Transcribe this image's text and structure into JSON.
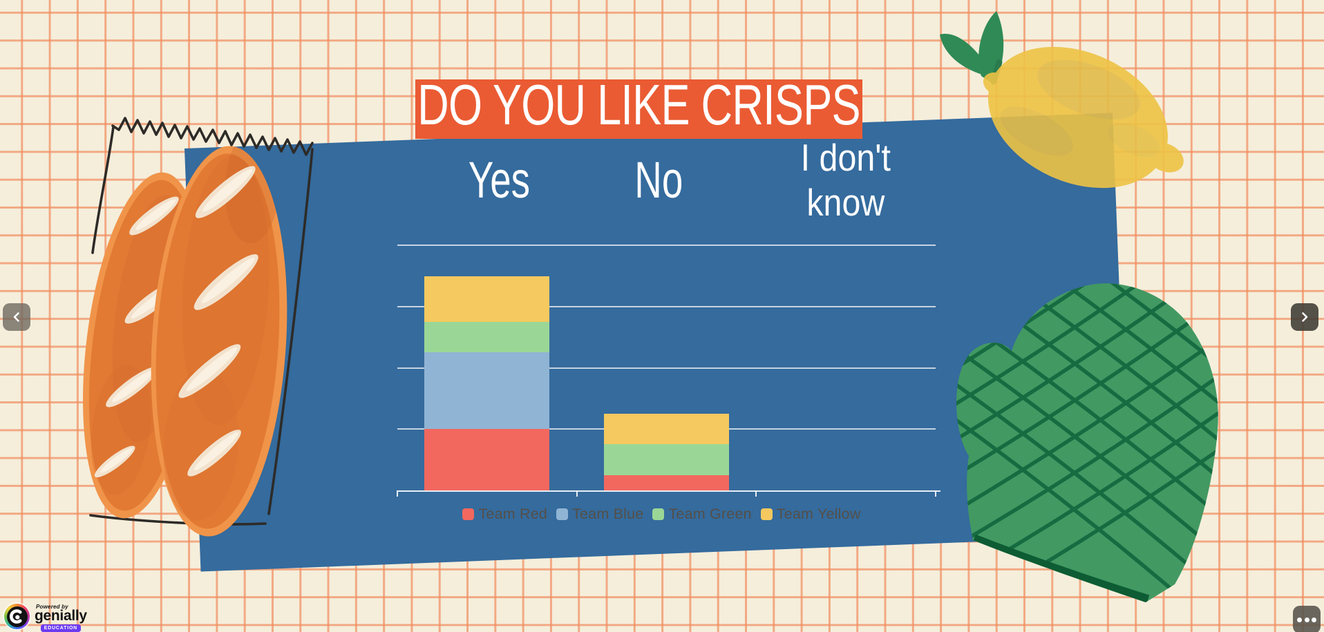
{
  "title": {
    "text": "DO YOU LIKE CRISPS"
  },
  "chart_data": {
    "type": "bar",
    "stacked": true,
    "title": "DO YOU LIKE CRISPS",
    "categories": [
      "Yes",
      "No",
      "I don't know"
    ],
    "series": [
      {
        "name": "Team Red",
        "color": "#f2685f",
        "values": [
          4,
          1,
          0
        ]
      },
      {
        "name": "Team Blue",
        "color": "#90b4d4",
        "values": [
          5,
          0,
          0
        ]
      },
      {
        "name": "Team Green",
        "color": "#9ad796",
        "values": [
          2,
          2,
          0
        ]
      },
      {
        "name": "Team Yellow",
        "color": "#f5c95f",
        "values": [
          3,
          2,
          0
        ]
      }
    ],
    "ylim": [
      0,
      16
    ],
    "gridline_values": [
      4,
      8,
      12,
      16
    ],
    "grid": true,
    "legend_position": "bottom"
  },
  "colors": {
    "panel": "#356b9d",
    "title_band": "#ea5b33",
    "background": "#f5eedb",
    "grid_line": "#f0885a",
    "sketch": "#2d2b28",
    "bread_body": "#e8823c",
    "lemon_body": "#eec345",
    "leaf": "#2f8a56",
    "mitt_body": "#429962",
    "mitt_hatch": "#176b41",
    "mitt_cuff": "#0d5c34"
  },
  "brand": {
    "powered_by": "Powered by",
    "name": "genially",
    "badge": "EDUCATION"
  },
  "nav": {
    "prev_icon": "chevron-left",
    "next_icon": "chevron-right",
    "more_icon": "ellipsis"
  }
}
